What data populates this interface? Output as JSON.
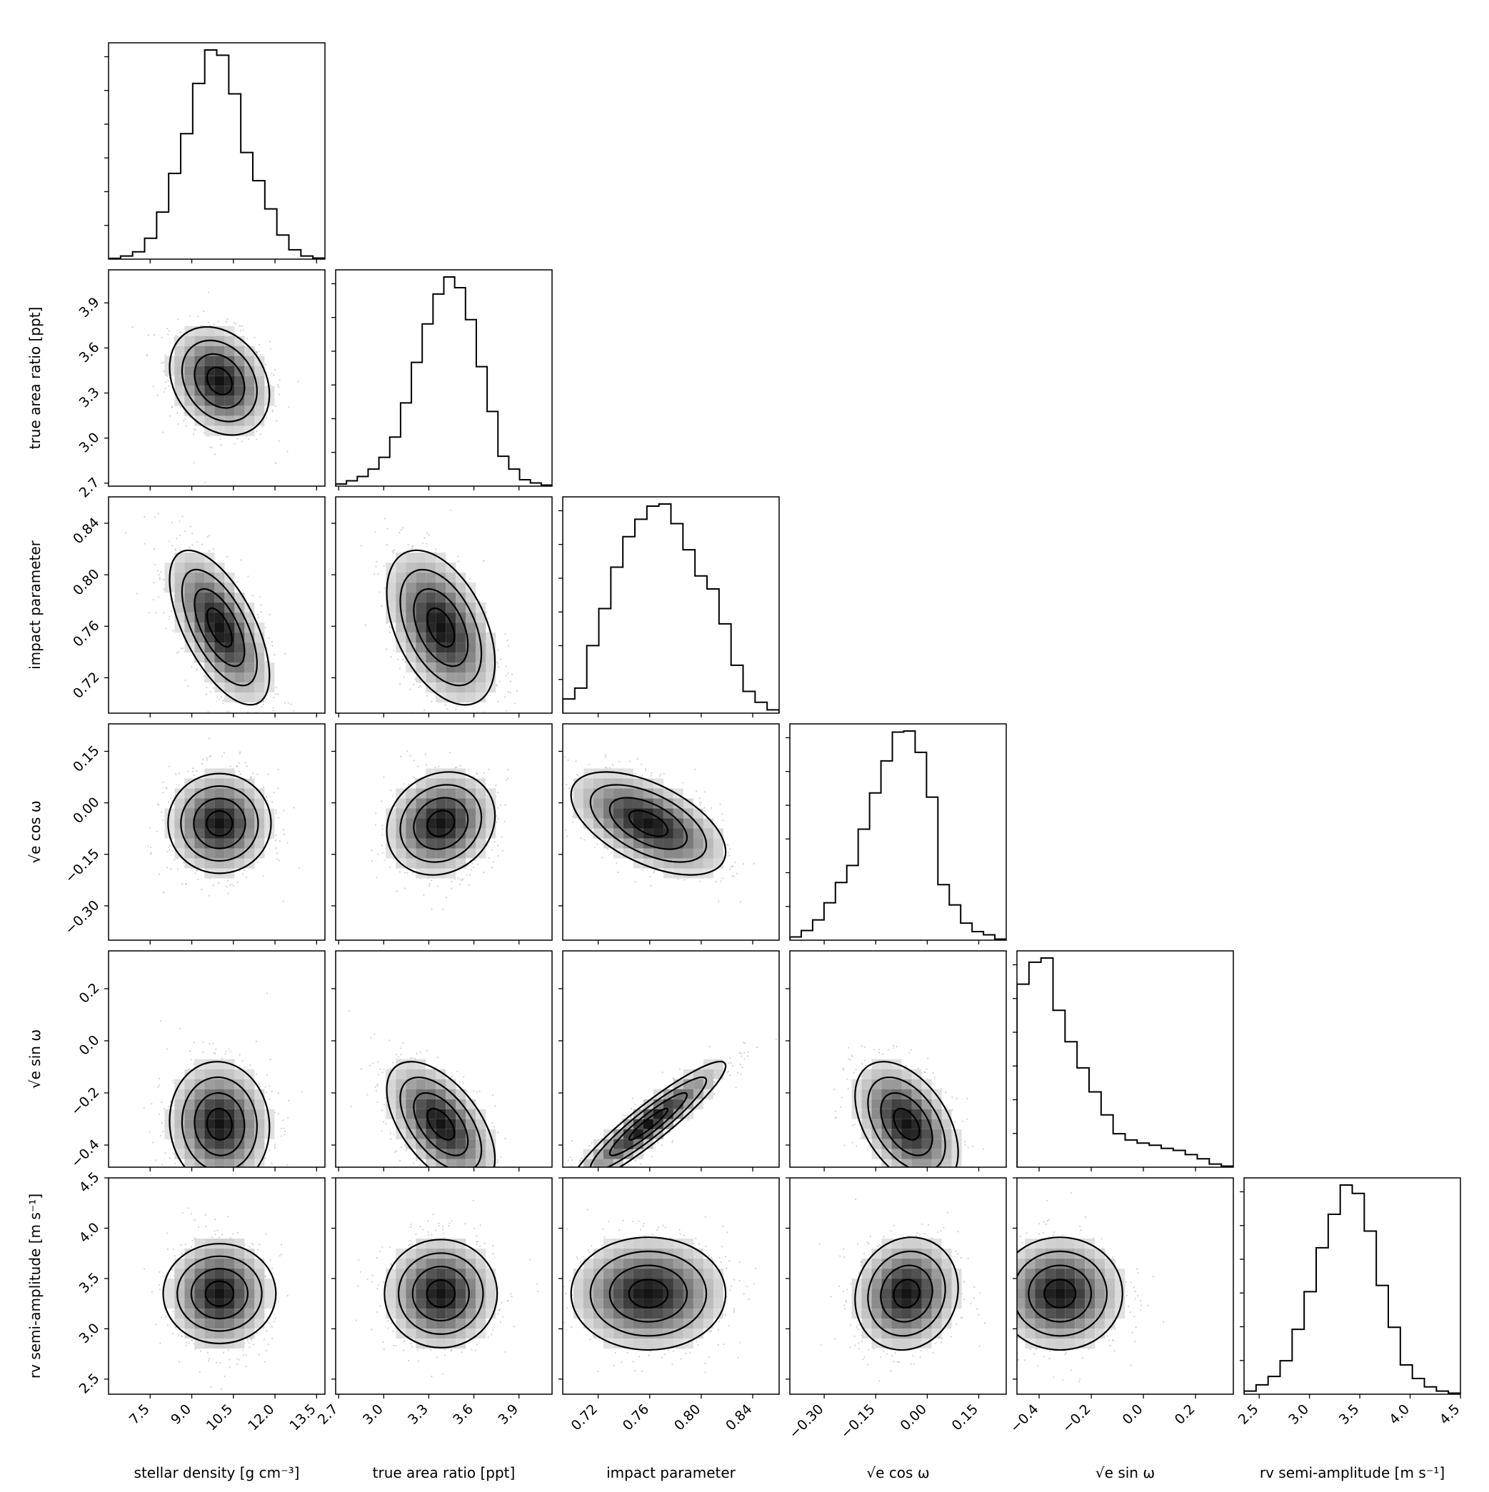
{
  "figure_type": "corner plot",
  "colors": {
    "line": "#000000",
    "sample_points": "#9a9a9a",
    "background": "#ffffff"
  },
  "parameters": [
    {
      "id": "rho",
      "label": "stellar density [g cm⁻³]",
      "ticks": [
        "7.5",
        "9.0",
        "10.5",
        "12.0",
        "13.5"
      ],
      "tick_values": [
        7.5,
        9.0,
        10.5,
        12.0,
        13.5
      ],
      "range": [
        6.0,
        13.8
      ],
      "mean": 10.0,
      "sd": 0.9
    },
    {
      "id": "ror",
      "label": "true area ratio [ppt]",
      "ticks": [
        "2.7",
        "3.0",
        "3.3",
        "3.6",
        "3.9"
      ],
      "tick_values": [
        2.7,
        3.0,
        3.3,
        3.6,
        3.9
      ],
      "range": [
        2.68,
        4.12
      ],
      "mean": 3.38,
      "sd": 0.18
    },
    {
      "id": "b",
      "label": "impact parameter",
      "ticks": [
        "0.72",
        "0.76",
        "0.80",
        "0.84"
      ],
      "tick_values": [
        0.72,
        0.76,
        0.8,
        0.84
      ],
      "range": [
        0.6925,
        0.8605
      ],
      "mean": 0.759,
      "sd": 0.03
    },
    {
      "id": "ecosw",
      "label": "√e  cos ω",
      "ticks": [
        "−0.30",
        "−0.15",
        "0.00",
        "0.15"
      ],
      "tick_values": [
        -0.3,
        -0.15,
        0.0,
        0.15
      ],
      "range": [
        -0.4,
        0.23
      ],
      "mean": -0.06,
      "sd": 0.075
    },
    {
      "id": "esinw",
      "label": "√e  sin ω",
      "ticks": [
        "−0.4",
        "−0.2",
        "0.0",
        "0.2"
      ],
      "tick_values": [
        -0.4,
        -0.2,
        0.0,
        0.2
      ],
      "range": [
        -0.485,
        0.345
      ],
      "mean": -0.32,
      "sd": 0.12
    },
    {
      "id": "K",
      "label": "rv semi-amplitude [m s⁻¹]",
      "ticks": [
        "2.5",
        "3.0",
        "3.5",
        "4.0",
        "4.5"
      ],
      "tick_values": [
        2.5,
        3.0,
        3.5,
        4.0,
        4.5
      ],
      "range": [
        2.35,
        4.5
      ],
      "mean": 3.35,
      "sd": 0.28
    }
  ],
  "chart_data": {
    "type": "corner",
    "histogram_counts": [
      [
        0.4,
        1.5,
        3.5,
        10,
        22.5,
        41,
        60,
        84,
        100,
        97.5,
        79,
        51,
        37.5,
        24,
        11.5,
        4.5,
        1.5,
        0.5
      ],
      [
        1,
        2.5,
        4.5,
        8,
        13.5,
        23,
        39,
        58,
        76,
        90,
        98,
        93,
        78,
        56,
        35,
        14,
        8,
        3,
        1.5,
        0.5
      ],
      [
        6.5,
        11.5,
        31,
        48,
        67,
        81,
        89,
        95,
        96,
        87,
        75,
        63,
        57,
        41,
        22,
        10,
        5,
        1.5
      ],
      [
        1.5,
        4.5,
        9.5,
        17.5,
        27,
        35,
        52,
        69,
        84,
        97.5,
        98,
        88,
        67,
        26,
        16.5,
        8,
        4,
        2.5,
        0.5
      ],
      [
        87.5,
        98,
        100,
        75,
        60,
        47.5,
        36,
        25,
        16,
        13,
        11.5,
        10.5,
        9,
        8,
        6,
        4,
        1.5,
        0.5
      ],
      [
        1.5,
        4.5,
        8.5,
        16,
        31,
        49,
        70,
        86,
        100,
        96,
        78,
        52,
        32,
        14,
        7.5,
        3.5,
        1.5,
        0.5
      ]
    ],
    "correlations": [
      [
        1,
        -0.25,
        -0.62,
        0.0,
        -0.05,
        0.0
      ],
      [
        -0.25,
        1,
        -0.45,
        0.15,
        -0.55,
        0.0
      ],
      [
        -0.62,
        -0.45,
        1,
        -0.55,
        0.93,
        0.0
      ],
      [
        0.0,
        0.15,
        -0.55,
        1,
        -0.45,
        0.1
      ],
      [
        -0.05,
        -0.55,
        0.93,
        -0.45,
        1,
        0.0
      ],
      [
        0.0,
        0.0,
        0.0,
        0.1,
        0.0,
        1
      ]
    ],
    "contour_levels_sigma": [
      0.5,
      1.0,
      1.5,
      2.0
    ]
  }
}
